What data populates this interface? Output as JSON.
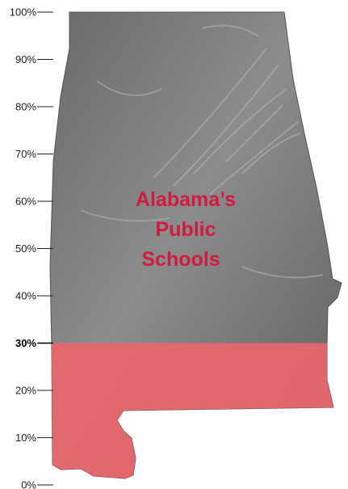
{
  "chart_data": {
    "type": "area",
    "axis": {
      "ticks": [
        "0%",
        "10%",
        "20%",
        "30%",
        "40%",
        "50%",
        "60%",
        "70%",
        "80%",
        "90%",
        "100%"
      ],
      "values": [
        0,
        10,
        20,
        30,
        40,
        50,
        60,
        70,
        80,
        90,
        100
      ],
      "highlighted_tick": "30%",
      "ylim": [
        0,
        100
      ]
    },
    "fill_value": 30,
    "fill_color": "#e8666c",
    "map_color": "#7a7a7a",
    "title_lines": [
      "Alabama’s",
      "Public",
      "Schools"
    ],
    "title_color": "#d11a3f"
  }
}
